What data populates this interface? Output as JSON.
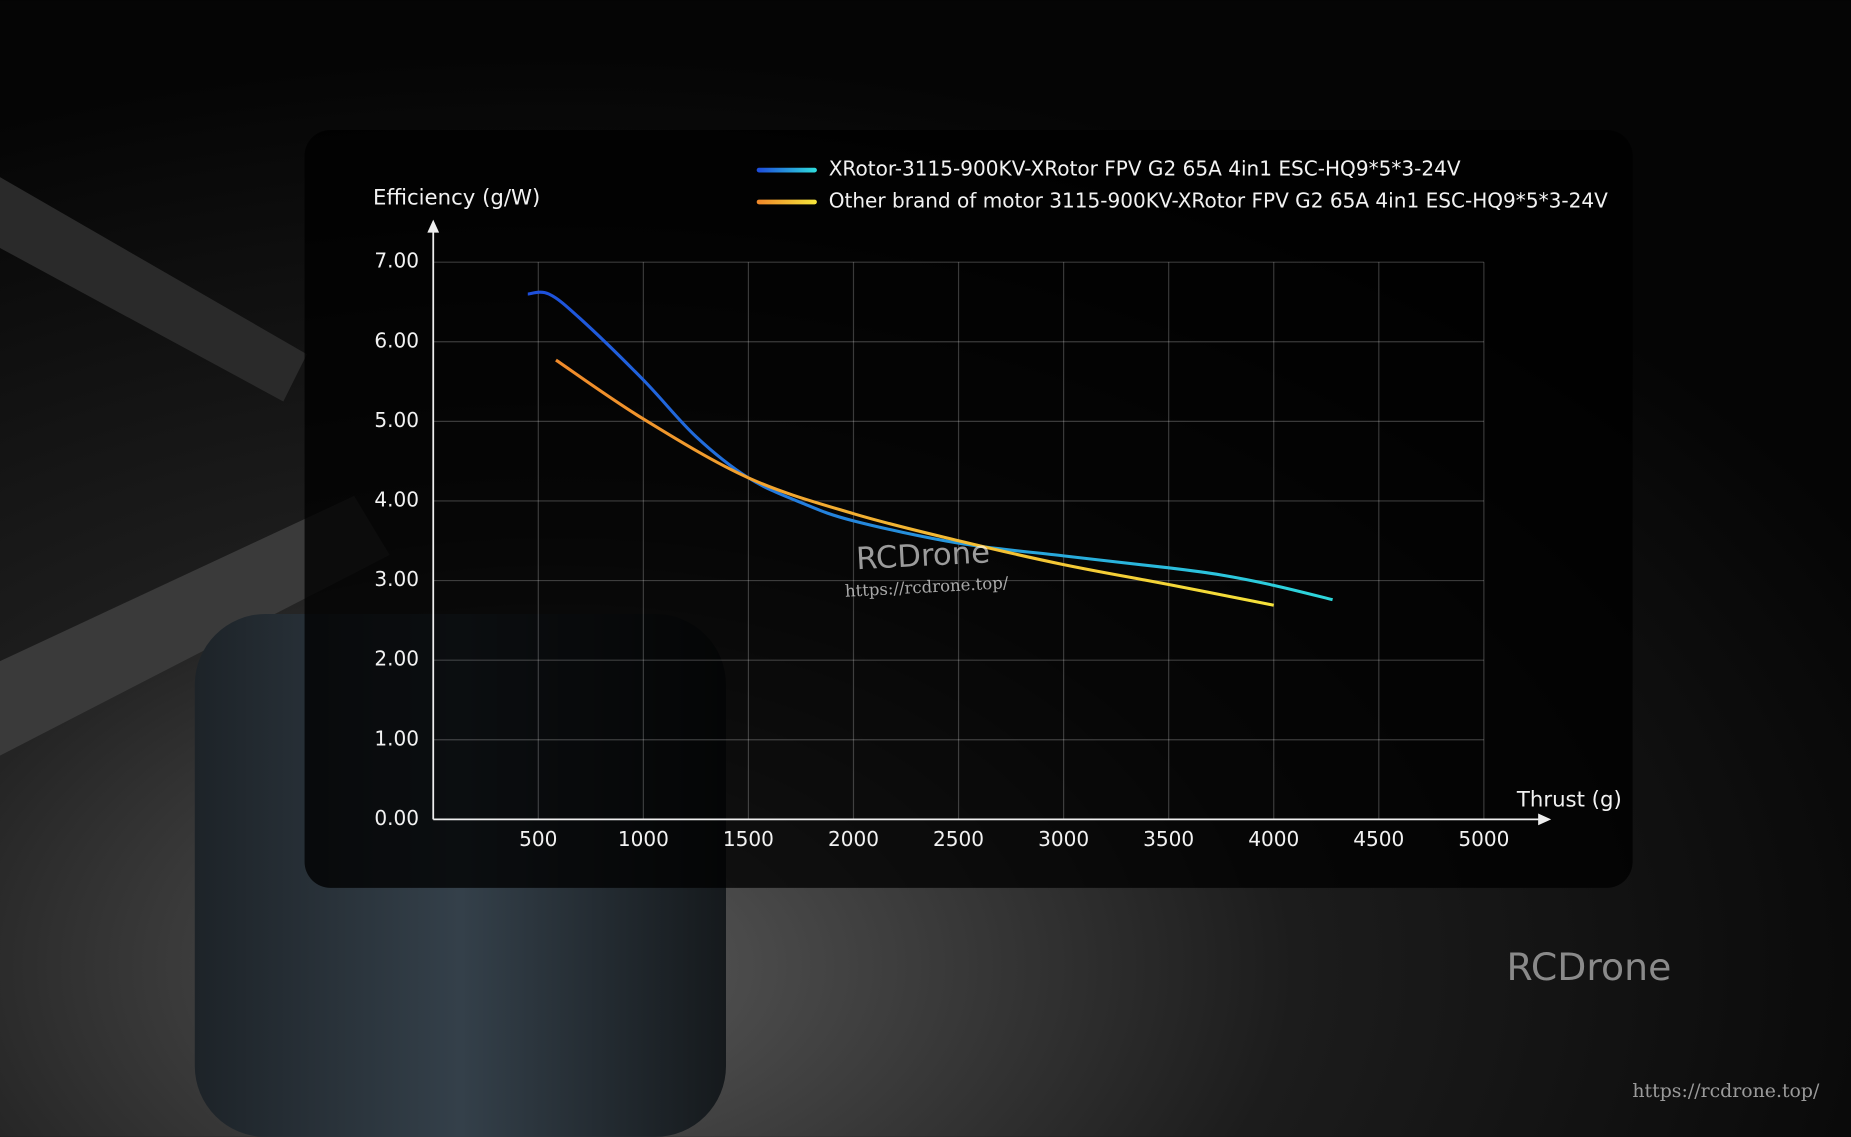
{
  "chart_data": {
    "type": "line",
    "x_label": "Thrust (g)",
    "y_label": "Efficiency (g/W)",
    "xlim": [
      0,
      5000
    ],
    "xticks": [
      500,
      1000,
      1500,
      2000,
      2500,
      3000,
      3500,
      4000,
      4500,
      5000
    ],
    "ylim": [
      0,
      7
    ],
    "yticks": [
      {
        "value": 0,
        "label": "0.00"
      },
      {
        "value": 1,
        "label": "1.00"
      },
      {
        "value": 2,
        "label": "2.00"
      },
      {
        "value": 3,
        "label": "3.00"
      },
      {
        "value": 4,
        "label": "4.00"
      },
      {
        "value": 5,
        "label": "5.00"
      },
      {
        "value": 6,
        "label": "6.00"
      },
      {
        "value": 7,
        "label": "7.00"
      }
    ],
    "grid": true,
    "series": [
      {
        "name": "XRotor-3115-900KV-XRotor FPV G2 65A 4in1 ESC-HQ9*5*3-24V",
        "color": "#1e4fdc",
        "gradient": [
          "#1e4fdc",
          "#2ed8dc"
        ],
        "x": [
          450,
          550,
          700,
          1000,
          1250,
          1500,
          1750,
          2000,
          2500,
          3000,
          3500,
          3750,
          4000,
          4280
        ],
        "values": [
          6.6,
          6.6,
          6.29,
          5.52,
          4.81,
          4.29,
          3.98,
          3.75,
          3.47,
          3.31,
          3.16,
          3.07,
          2.94,
          2.76
        ]
      },
      {
        "name": "Other brand of motor 3115-900KV-XRotor FPV G2 65A 4in1 ESC-HQ9*5*3-24V",
        "color": "#f08a2a",
        "gradient": [
          "#f08a2a",
          "#f5e23a"
        ],
        "x": [
          584,
          1000,
          1500,
          2000,
          2500,
          3000,
          3500,
          4000
        ],
        "values": [
          5.77,
          5.03,
          4.29,
          3.84,
          3.5,
          3.2,
          2.95,
          2.69
        ]
      }
    ],
    "annotations": [
      "RCDrone",
      "https://rcdrone.top/",
      "RCDrone",
      "https://rcdrone.top/"
    ]
  }
}
